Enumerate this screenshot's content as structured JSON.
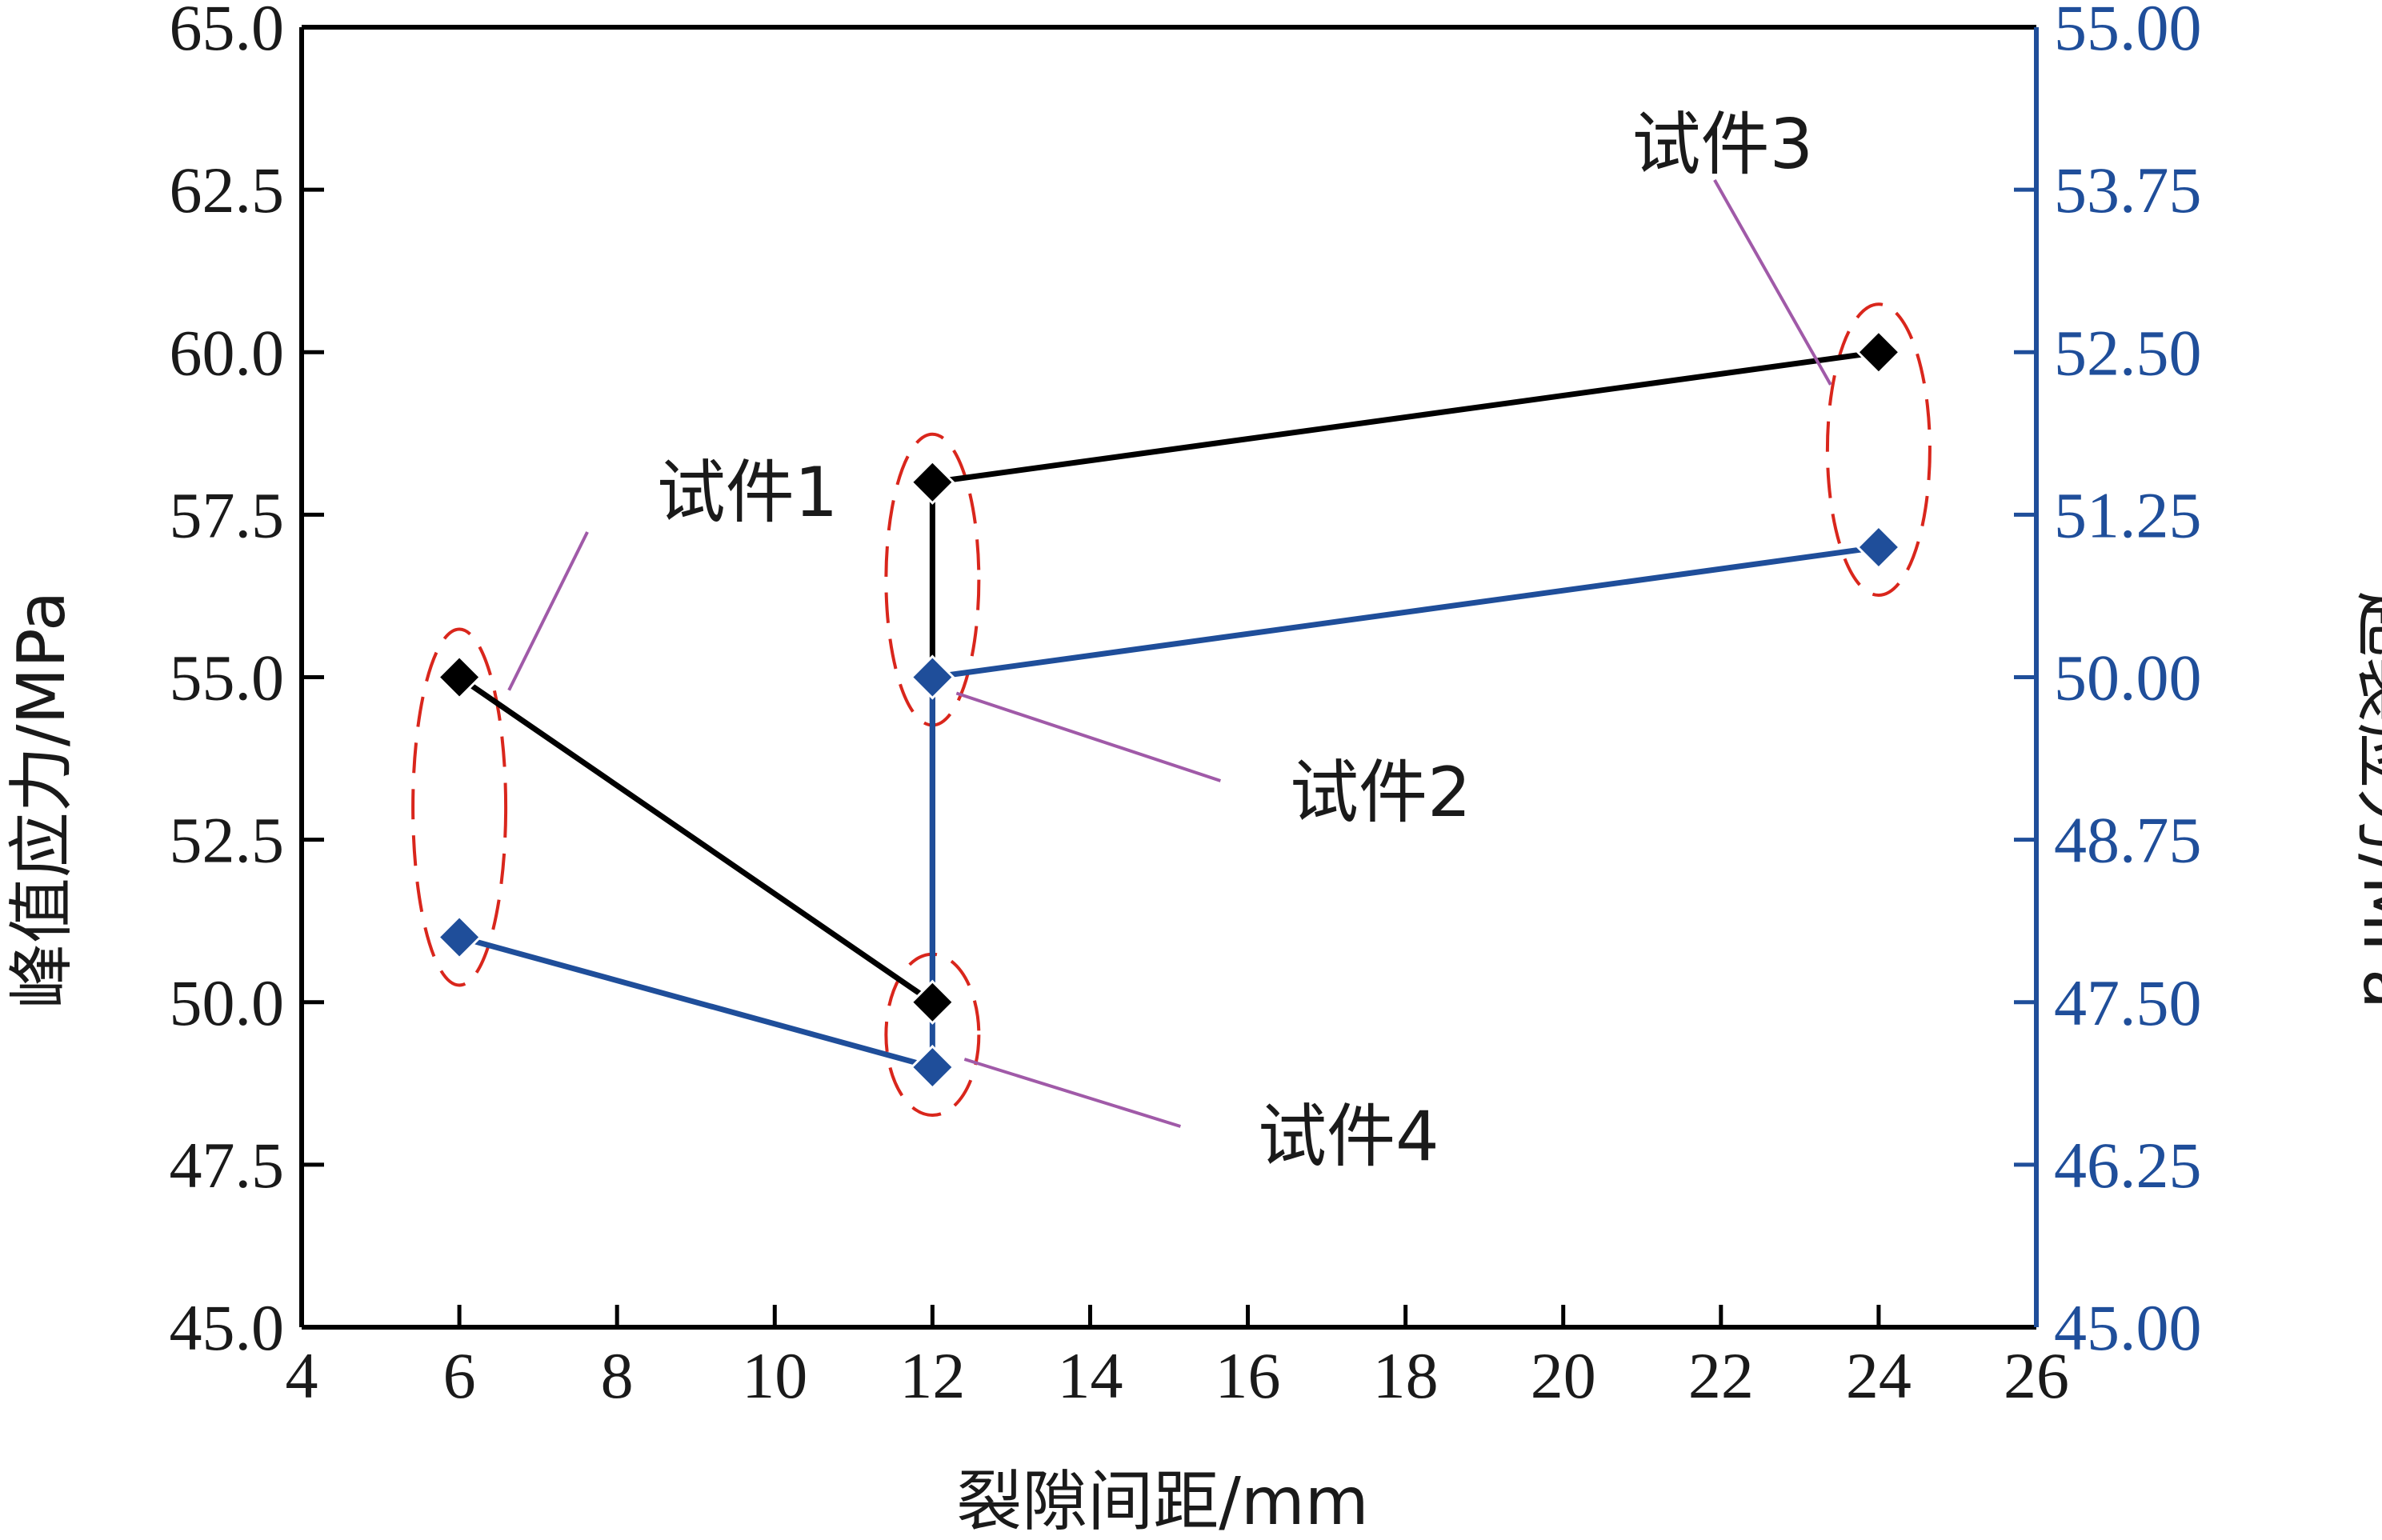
{
  "chart_data": {
    "type": "line",
    "xlabel": "裂隙间距/mm",
    "ylabel_left": "峰值应力/MPa",
    "ylabel_right": "起裂应力/MPa",
    "xlim": [
      4,
      26
    ],
    "ylim_left": [
      45.0,
      65.0
    ],
    "ylim_right": [
      45.0,
      55.0
    ],
    "x_ticks": [
      "4",
      "6",
      "8",
      "10",
      "12",
      "14",
      "16",
      "18",
      "20",
      "22",
      "24",
      "26"
    ],
    "y_left_ticks": [
      "45.0",
      "47.5",
      "50.0",
      "52.5",
      "55.0",
      "57.5",
      "60.0",
      "62.5",
      "65.0"
    ],
    "y_right_ticks": [
      "45.00",
      "46.25",
      "47.50",
      "48.75",
      "50.00",
      "51.25",
      "52.50",
      "53.75",
      "55.00"
    ],
    "grid": false,
    "colors": {
      "peak": "#000000",
      "initiation": "#1f4e9a",
      "ellipse": "#d9261c",
      "leader": "#a05aa8",
      "right_axis": "#1f4e9a"
    },
    "series": [
      {
        "axis": "left",
        "color": "#000000",
        "marker": "diamond",
        "points": [
          {
            "x": 6,
            "y": 55.0
          },
          {
            "x": 12,
            "y": 50.0
          },
          {
            "x": 12,
            "y": 58.0
          },
          {
            "x": 24,
            "y": 60.0
          }
        ]
      },
      {
        "axis": "right",
        "color": "#1f4e9a",
        "marker": "diamond",
        "points": [
          {
            "x": 6,
            "y": 48.0
          },
          {
            "x": 12,
            "y": 47.0
          },
          {
            "x": 12,
            "y": 50.0
          },
          {
            "x": 24,
            "y": 51.0
          }
        ]
      }
    ],
    "annotations": [
      {
        "text": "试件1",
        "x": 6
      },
      {
        "text": "试件2",
        "x": 12
      },
      {
        "text": "试件3",
        "x": 24
      },
      {
        "text": "试件4",
        "x": 12
      }
    ]
  }
}
